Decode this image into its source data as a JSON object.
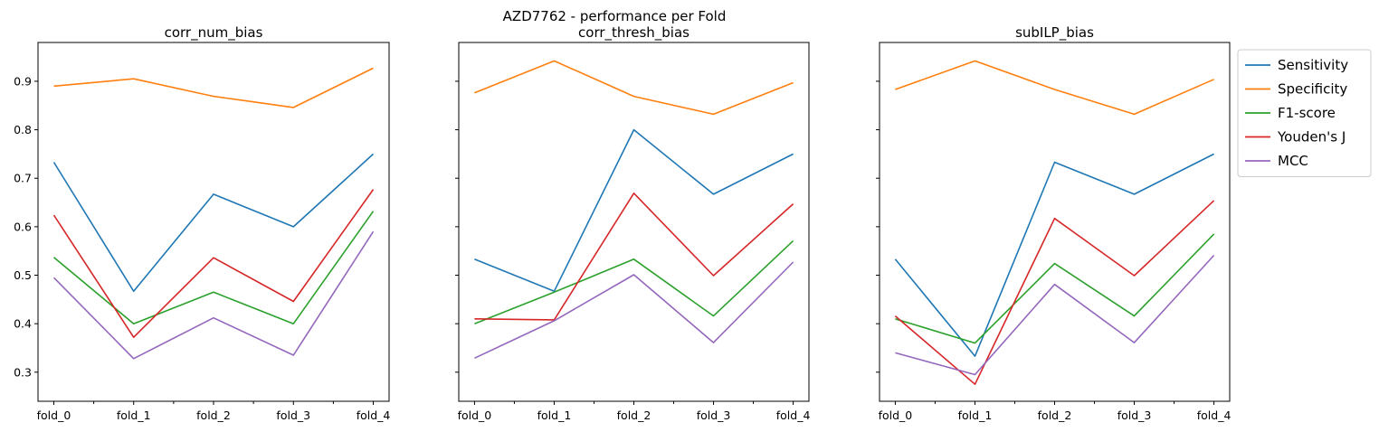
{
  "figure": {
    "suptitle": "AZD7762 - performance per Fold"
  },
  "chart_data": [
    {
      "type": "line",
      "title": "corr_num_bias",
      "xlabel": "",
      "ylabel": "",
      "categories": [
        "fold_0",
        "fold_1",
        "fold_2",
        "fold_3",
        "fold_4"
      ],
      "ylim": [
        0.24,
        0.98
      ],
      "yticks": [
        0.3,
        0.4,
        0.5,
        0.6,
        0.7,
        0.8,
        0.9
      ],
      "series": [
        {
          "name": "Sensitivity",
          "color": "#1f77b4",
          "values": [
            0.733,
            0.467,
            0.667,
            0.6,
            0.75
          ]
        },
        {
          "name": "Specificity",
          "color": "#ff7f0e",
          "values": [
            0.89,
            0.905,
            0.869,
            0.846,
            0.927
          ]
        },
        {
          "name": "F1-score",
          "color": "#2ca02c",
          "values": [
            0.537,
            0.4,
            0.465,
            0.4,
            0.632
          ]
        },
        {
          "name": "Youden's J",
          "color": "#d62728",
          "values": [
            0.624,
            0.372,
            0.536,
            0.446,
            0.677
          ]
        },
        {
          "name": "MCC",
          "color": "#9467bd",
          "values": [
            0.495,
            0.328,
            0.412,
            0.335,
            0.59
          ]
        }
      ]
    },
    {
      "type": "line",
      "title": "corr_thresh_bias",
      "xlabel": "",
      "ylabel": "",
      "categories": [
        "fold_0",
        "fold_1",
        "fold_2",
        "fold_3",
        "fold_4"
      ],
      "ylim": [
        0.24,
        0.98
      ],
      "yticks": [
        0.3,
        0.4,
        0.5,
        0.6,
        0.7,
        0.8,
        0.9
      ],
      "series": [
        {
          "name": "Sensitivity",
          "color": "#1f77b4",
          "values": [
            0.533,
            0.467,
            0.8,
            0.667,
            0.75
          ]
        },
        {
          "name": "Specificity",
          "color": "#ff7f0e",
          "values": [
            0.876,
            0.942,
            0.869,
            0.832,
            0.897
          ]
        },
        {
          "name": "F1-score",
          "color": "#2ca02c",
          "values": [
            0.4,
            0.465,
            0.533,
            0.416,
            0.571
          ]
        },
        {
          "name": "Youden's J",
          "color": "#d62728",
          "values": [
            0.41,
            0.408,
            0.669,
            0.499,
            0.647
          ]
        },
        {
          "name": "MCC",
          "color": "#9467bd",
          "values": [
            0.329,
            0.406,
            0.501,
            0.361,
            0.527
          ]
        }
      ]
    },
    {
      "type": "line",
      "title": "subILP_bias",
      "xlabel": "",
      "ylabel": "",
      "categories": [
        "fold_0",
        "fold_1",
        "fold_2",
        "fold_3",
        "fold_4"
      ],
      "ylim": [
        0.24,
        0.98
      ],
      "yticks": [
        0.3,
        0.4,
        0.5,
        0.6,
        0.7,
        0.8,
        0.9
      ],
      "legend": "upper-right-outside",
      "series": [
        {
          "name": "Sensitivity",
          "color": "#1f77b4",
          "values": [
            0.533,
            0.333,
            0.733,
            0.667,
            0.75
          ]
        },
        {
          "name": "Specificity",
          "color": "#ff7f0e",
          "values": [
            0.883,
            0.942,
            0.883,
            0.832,
            0.904
          ]
        },
        {
          "name": "F1-score",
          "color": "#2ca02c",
          "values": [
            0.41,
            0.36,
            0.524,
            0.416,
            0.585
          ]
        },
        {
          "name": "Youden's J",
          "color": "#d62728",
          "values": [
            0.416,
            0.275,
            0.617,
            0.499,
            0.654
          ]
        },
        {
          "name": "MCC",
          "color": "#9467bd",
          "values": [
            0.34,
            0.295,
            0.481,
            0.361,
            0.541
          ]
        }
      ]
    }
  ]
}
